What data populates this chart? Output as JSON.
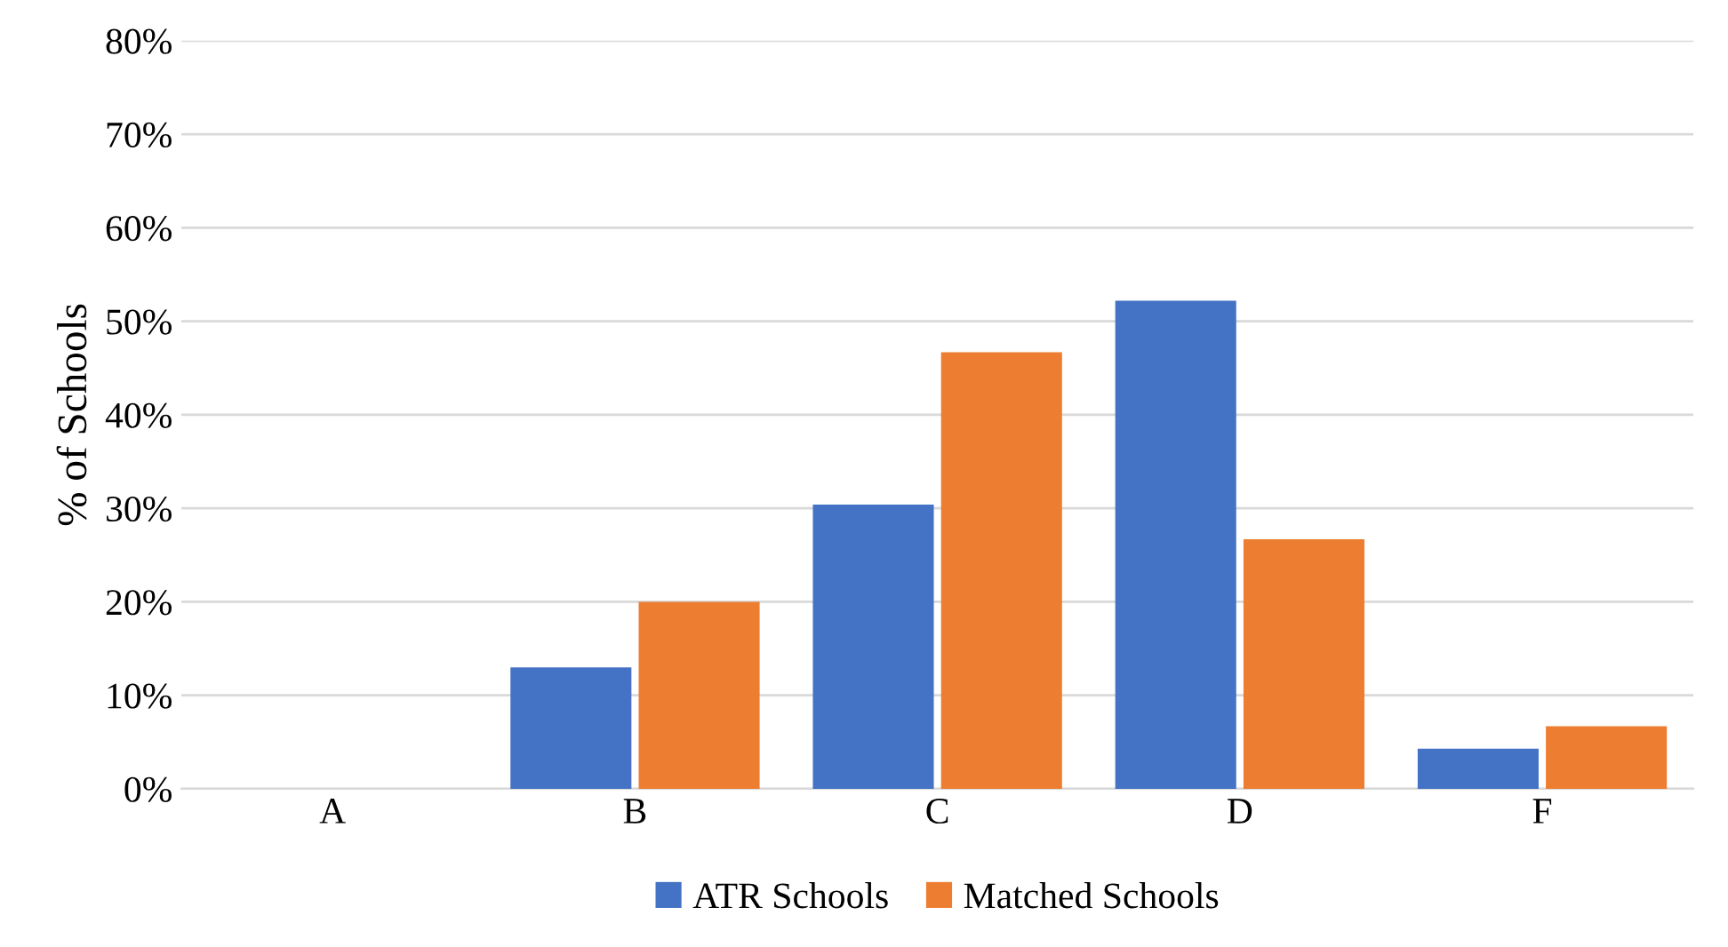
{
  "chart_data": {
    "type": "bar",
    "ylabel": "% of Schools",
    "categories": [
      "A",
      "B",
      "C",
      "D",
      "F"
    ],
    "series": [
      {
        "name": "ATR Schools",
        "color": "#4472c4",
        "values": [
          0,
          13.0,
          30.4,
          52.2,
          4.3
        ]
      },
      {
        "name": "Matched Schools",
        "color": "#ed7d31",
        "values": [
          0,
          20.0,
          46.7,
          26.7,
          6.7
        ]
      }
    ],
    "ylim": [
      0,
      80
    ],
    "yticks": [
      {
        "value": 0,
        "label": "0%"
      },
      {
        "value": 10,
        "label": "10%"
      },
      {
        "value": 20,
        "label": "20%"
      },
      {
        "value": 30,
        "label": "30%"
      },
      {
        "value": 40,
        "label": "40%"
      },
      {
        "value": 50,
        "label": "50%"
      },
      {
        "value": 60,
        "label": "60%"
      },
      {
        "value": 70,
        "label": "70%"
      },
      {
        "value": 80,
        "label": "80%"
      }
    ],
    "grid": "y",
    "legend": "bottom"
  }
}
